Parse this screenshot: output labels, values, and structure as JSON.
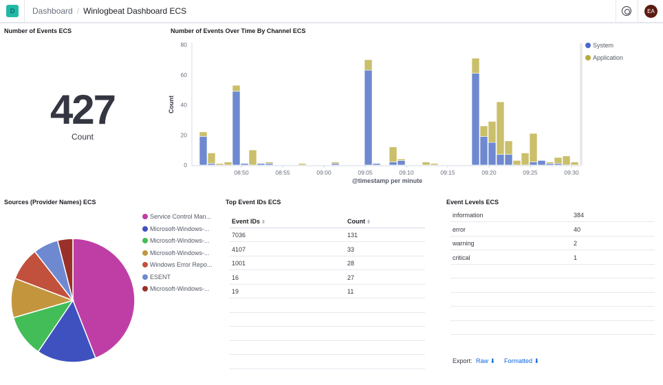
{
  "header": {
    "logo_letter": "D",
    "breadcrumb_root": "Dashboard",
    "breadcrumb_current": "Winlogbeat Dashboard ECS",
    "avatar_initials": "EA"
  },
  "metric_panel": {
    "title": "Number of Events ECS",
    "value": "427",
    "label": "Count"
  },
  "chart_data": [
    {
      "type": "bar",
      "stacked": true,
      "title": "Number of Events Over Time By Channel ECS",
      "xlabel": "@timestamp per minute",
      "ylabel": "Count",
      "ylim": [
        0,
        80
      ],
      "yticks": [
        0,
        20,
        40,
        60,
        80
      ],
      "xticks": [
        "08:50",
        "08:55",
        "09:00",
        "09:05",
        "09:10",
        "09:15",
        "09:20",
        "09:25",
        "09:30"
      ],
      "legend": "right",
      "x": [
        "08:45",
        "08:46",
        "08:47",
        "08:48",
        "08:49",
        "08:50",
        "08:51",
        "08:52",
        "08:53",
        "08:54",
        "08:55",
        "08:56",
        "08:57",
        "08:58",
        "08:59",
        "09:00",
        "09:01",
        "09:02",
        "09:03",
        "09:04",
        "09:05",
        "09:06",
        "09:07",
        "09:08",
        "09:09",
        "09:10",
        "09:11",
        "09:12",
        "09:13",
        "09:14",
        "09:15",
        "09:16",
        "09:17",
        "09:18",
        "09:19",
        "09:20",
        "09:21",
        "09:22",
        "09:23",
        "09:24",
        "09:25",
        "09:26",
        "09:27",
        "09:28",
        "09:29",
        "09:30"
      ],
      "series": [
        {
          "name": "System",
          "color": "#6e89d0",
          "values": [
            19,
            1,
            0,
            0,
            49,
            1,
            0,
            1,
            1,
            0,
            0,
            0,
            0,
            0,
            0,
            0,
            1,
            0,
            0,
            0,
            63,
            1,
            0,
            2,
            3,
            0,
            0,
            0,
            0,
            0,
            0,
            0,
            0,
            61,
            19,
            15,
            7,
            7,
            0,
            0,
            2,
            3,
            1,
            1,
            0,
            0
          ]
        },
        {
          "name": "Application",
          "color": "#cabf6b",
          "values": [
            3,
            7,
            1,
            2,
            4,
            0,
            10,
            0,
            1,
            0,
            0,
            0,
            1,
            0,
            0,
            0,
            1,
            0,
            0,
            0,
            7,
            0,
            0,
            10,
            1,
            0,
            0,
            2,
            1,
            0,
            0,
            0,
            0,
            10,
            7,
            14,
            35,
            9,
            3,
            8,
            19,
            0,
            1,
            4,
            6,
            2
          ]
        }
      ]
    },
    {
      "type": "pie",
      "title": "Sources (Provider Names) ECS",
      "legend": "right",
      "categories": [
        "Service Control Man...",
        "Microsoft-Windows-...",
        "Microsoft-Windows-...",
        "Microsoft-Windows-...",
        "Windows Error Repo...",
        "ESENT",
        "Microsoft-Windows-..."
      ],
      "values": [
        188,
        66,
        47,
        44,
        37,
        28,
        17
      ],
      "colors": [
        "#bf3ea6",
        "#3f51bf",
        "#43bd57",
        "#c3963e",
        "#c1513c",
        "#6e89d0",
        "#99302a"
      ]
    }
  ],
  "top_event_ids": {
    "title": "Top Event IDs ECS",
    "columns": [
      "Event IDs",
      "Count"
    ],
    "rows": [
      [
        "7036",
        "131"
      ],
      [
        "4107",
        "33"
      ],
      [
        "1001",
        "28"
      ],
      [
        "16",
        "27"
      ],
      [
        "19",
        "11"
      ]
    ]
  },
  "event_levels": {
    "title": "Event Levels ECS",
    "rows": [
      [
        "information",
        "384"
      ],
      [
        "error",
        "40"
      ],
      [
        "warning",
        "2"
      ],
      [
        "critical",
        "1"
      ]
    ],
    "export_label": "Export:",
    "raw_label": "Raw",
    "formatted_label": "Formatted"
  }
}
